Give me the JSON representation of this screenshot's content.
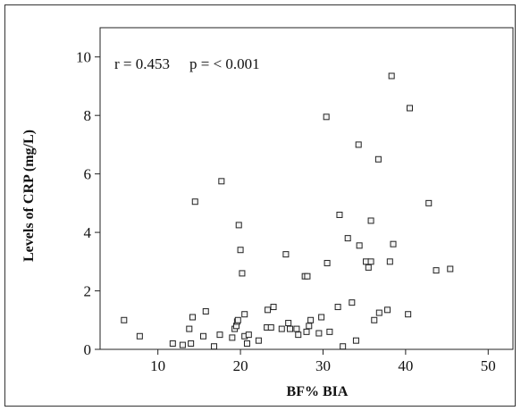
{
  "chart_data": {
    "type": "scatter",
    "xlabel": "BF% BIA",
    "ylabel": "Levels of CRP (mg/L)",
    "xlim": [
      3,
      53
    ],
    "ylim": [
      0,
      11
    ],
    "xticks": [
      10,
      20,
      30,
      40,
      50
    ],
    "yticks": [
      0,
      2,
      4,
      6,
      8,
      10
    ],
    "annotations": {
      "r": "r = 0.453",
      "p": "p = < 0.001"
    },
    "grid": false,
    "points": [
      [
        5.9,
        1.0
      ],
      [
        7.8,
        0.45
      ],
      [
        11.8,
        0.2
      ],
      [
        13.0,
        0.15
      ],
      [
        13.8,
        0.7
      ],
      [
        14.0,
        0.2
      ],
      [
        14.2,
        1.1
      ],
      [
        14.5,
        5.05
      ],
      [
        15.5,
        0.45
      ],
      [
        15.8,
        1.3
      ],
      [
        16.8,
        0.1
      ],
      [
        17.5,
        0.5
      ],
      [
        17.7,
        5.75
      ],
      [
        19.0,
        0.4
      ],
      [
        19.3,
        0.7
      ],
      [
        19.5,
        0.8
      ],
      [
        19.6,
        0.95
      ],
      [
        19.7,
        1.0
      ],
      [
        19.8,
        4.25
      ],
      [
        20.0,
        3.4
      ],
      [
        20.2,
        2.6
      ],
      [
        20.5,
        0.45
      ],
      [
        20.5,
        1.2
      ],
      [
        20.8,
        0.2
      ],
      [
        21.0,
        0.5
      ],
      [
        22.2,
        0.3
      ],
      [
        23.2,
        0.75
      ],
      [
        23.3,
        1.35
      ],
      [
        23.7,
        0.75
      ],
      [
        24.0,
        1.45
      ],
      [
        25.0,
        0.7
      ],
      [
        25.5,
        3.25
      ],
      [
        25.8,
        0.9
      ],
      [
        26.0,
        0.7
      ],
      [
        26.8,
        0.7
      ],
      [
        27.0,
        0.5
      ],
      [
        27.8,
        2.5
      ],
      [
        28.1,
        2.5
      ],
      [
        28.0,
        0.6
      ],
      [
        28.3,
        0.8
      ],
      [
        28.5,
        1.0
      ],
      [
        29.5,
        0.55
      ],
      [
        29.8,
        1.1
      ],
      [
        30.4,
        7.95
      ],
      [
        30.5,
        2.95
      ],
      [
        30.8,
        0.6
      ],
      [
        31.8,
        1.45
      ],
      [
        32.0,
        4.6
      ],
      [
        32.4,
        0.1
      ],
      [
        33.0,
        3.8
      ],
      [
        33.5,
        1.6
      ],
      [
        34.0,
        0.3
      ],
      [
        34.3,
        7.0
      ],
      [
        34.4,
        3.55
      ],
      [
        35.2,
        3.0
      ],
      [
        35.5,
        2.8
      ],
      [
        35.8,
        4.4
      ],
      [
        35.8,
        3.0
      ],
      [
        36.2,
        1.0
      ],
      [
        36.7,
        6.5
      ],
      [
        36.8,
        1.25
      ],
      [
        37.8,
        1.35
      ],
      [
        38.1,
        3.0
      ],
      [
        38.3,
        9.35
      ],
      [
        38.5,
        3.6
      ],
      [
        40.3,
        1.2
      ],
      [
        40.5,
        8.25
      ],
      [
        42.8,
        5.0
      ],
      [
        43.7,
        2.7
      ],
      [
        45.4,
        2.75
      ]
    ]
  }
}
